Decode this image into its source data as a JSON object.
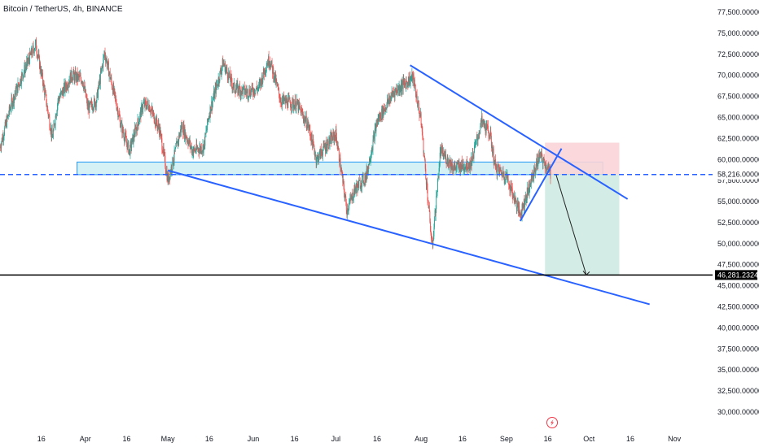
{
  "title": "Bitcoin / TetherUS, 4h, BINANCE",
  "colors": {
    "up": "#26a69a",
    "down": "#ef5350",
    "trendline": "#2962ff",
    "zone_fill": "#d6f1f5",
    "zone_stroke": "#2196f3",
    "stop_fill": "#f9d4d7",
    "target_fill": "#d1ece5",
    "target_line": "#000000",
    "axis_text": "#131722"
  },
  "icons": {
    "event_marker": "lightning-icon"
  },
  "chart_data": {
    "type": "candlestick",
    "symbol": "Bitcoin / TetherUS",
    "interval": "4h",
    "exchange": "BINANCE",
    "title": "Bitcoin / TetherUS, 4h, BINANCE",
    "ylim": [
      30000,
      77500
    ],
    "y_ticks": [
      "77,500.000000",
      "75,000.000000",
      "72,500.000000",
      "70,000.000000",
      "67,500.000000",
      "65,000.000000",
      "62,500.000000",
      "60,000.000000",
      "57,500.000000",
      "55,000.000000",
      "52,500.000000",
      "50,000.000000",
      "47,500.000000",
      "45,000.000000",
      "42,500.000000",
      "40,000.000000",
      "37,500.000000",
      "35,000.000000",
      "32,500.000000",
      "30,000.000000"
    ],
    "y_tick_values": [
      77500,
      75000,
      72500,
      70000,
      67500,
      65000,
      62500,
      60000,
      57500,
      55000,
      52500,
      50000,
      47500,
      45000,
      42500,
      40000,
      37500,
      35000,
      32500,
      30000
    ],
    "x_ticks": [
      {
        "label": "16",
        "date": "2024-03-16"
      },
      {
        "label": "Apr",
        "date": "2024-04-01"
      },
      {
        "label": "16",
        "date": "2024-04-16"
      },
      {
        "label": "May",
        "date": "2024-05-01"
      },
      {
        "label": "16",
        "date": "2024-05-16"
      },
      {
        "label": "Jun",
        "date": "2024-06-01"
      },
      {
        "label": "16",
        "date": "2024-06-16"
      },
      {
        "label": "Jul",
        "date": "2024-07-01"
      },
      {
        "label": "16",
        "date": "2024-07-16"
      },
      {
        "label": "Aug",
        "date": "2024-08-01"
      },
      {
        "label": "16",
        "date": "2024-08-16"
      },
      {
        "label": "Sep",
        "date": "2024-09-01"
      },
      {
        "label": "16",
        "date": "2024-09-16"
      },
      {
        "label": "Oct",
        "date": "2024-10-01"
      },
      {
        "label": "16",
        "date": "2024-10-16"
      },
      {
        "label": "Nov",
        "date": "2024-11-01"
      }
    ],
    "price_path": [
      [
        "2024-03-01",
        61500
      ],
      [
        "2024-03-05",
        66500
      ],
      [
        "2024-03-09",
        70000
      ],
      [
        "2024-03-13",
        73000
      ],
      [
        "2024-03-14",
        73700
      ],
      [
        "2024-03-17",
        68500
      ],
      [
        "2024-03-20",
        62500
      ],
      [
        "2024-03-22",
        67000
      ],
      [
        "2024-03-27",
        70000
      ],
      [
        "2024-03-31",
        69500
      ],
      [
        "2024-04-02",
        66000
      ],
      [
        "2024-04-05",
        67000
      ],
      [
        "2024-04-08",
        72700
      ],
      [
        "2024-04-12",
        67000
      ],
      [
        "2024-04-14",
        64000
      ],
      [
        "2024-04-17",
        61000
      ],
      [
        "2024-04-22",
        66500
      ],
      [
        "2024-04-24",
        66500
      ],
      [
        "2024-04-28",
        63500
      ],
      [
        "2024-05-01",
        57500
      ],
      [
        "2024-05-03",
        60000
      ],
      [
        "2024-05-06",
        64000
      ],
      [
        "2024-05-10",
        61000
      ],
      [
        "2024-05-14",
        61500
      ],
      [
        "2024-05-16",
        65500
      ],
      [
        "2024-05-21",
        71500
      ],
      [
        "2024-05-25",
        68500
      ],
      [
        "2024-05-30",
        68000
      ],
      [
        "2024-06-03",
        68500
      ],
      [
        "2024-06-06",
        71500
      ],
      [
        "2024-06-07",
        71900
      ],
      [
        "2024-06-11",
        67000
      ],
      [
        "2024-06-17",
        66500
      ],
      [
        "2024-06-21",
        64000
      ],
      [
        "2024-06-24",
        60000
      ],
      [
        "2024-06-27",
        61500
      ],
      [
        "2024-07-01",
        63000
      ],
      [
        "2024-07-05",
        54000
      ],
      [
        "2024-07-08",
        56500
      ],
      [
        "2024-07-12",
        58000
      ],
      [
        "2024-07-16",
        64500
      ],
      [
        "2024-07-22",
        68000
      ],
      [
        "2024-07-29",
        69800
      ],
      [
        "2024-08-01",
        64500
      ],
      [
        "2024-08-05",
        49500
      ],
      [
        "2024-08-08",
        61000
      ],
      [
        "2024-08-13",
        59000
      ],
      [
        "2024-08-19",
        59500
      ],
      [
        "2024-08-23",
        64500
      ],
      [
        "2024-08-26",
        63000
      ],
      [
        "2024-08-28",
        59000
      ],
      [
        "2024-09-01",
        58000
      ],
      [
        "2024-09-06",
        53500
      ],
      [
        "2024-09-09",
        56500
      ],
      [
        "2024-09-13",
        60500
      ],
      [
        "2024-09-15",
        59500
      ],
      [
        "2024-09-17",
        58216
      ]
    ],
    "current_price": 58216,
    "current_price_label": "58,216.000000",
    "target_price": 46281.23243,
    "target_price_label": "46,281.23243",
    "position": {
      "type": "short",
      "entry": 58216,
      "stop": 62000,
      "target": 46281.23243,
      "start_date": "2024-09-15",
      "end_date": "2024-10-12"
    },
    "support_zone": {
      "from_date": "2024-03-29",
      "to_date": "2024-10-06",
      "low": 58200,
      "high": 59700
    },
    "trendlines": [
      {
        "name": "lower",
        "from": [
          "2024-05-01",
          58700
        ],
        "to": [
          "2024-10-23",
          42800
        ]
      },
      {
        "name": "upper",
        "from": [
          "2024-07-28",
          71200
        ],
        "to": [
          "2024-10-15",
          55300
        ]
      },
      {
        "name": "flag",
        "from": [
          "2024-09-06",
          52700
        ],
        "to": [
          "2024-09-21",
          61300
        ]
      }
    ],
    "projection": {
      "from": [
        "2024-09-19",
        58216
      ],
      "to": [
        "2024-09-30",
        46281.23243
      ]
    },
    "grid": false,
    "legend": "none"
  }
}
